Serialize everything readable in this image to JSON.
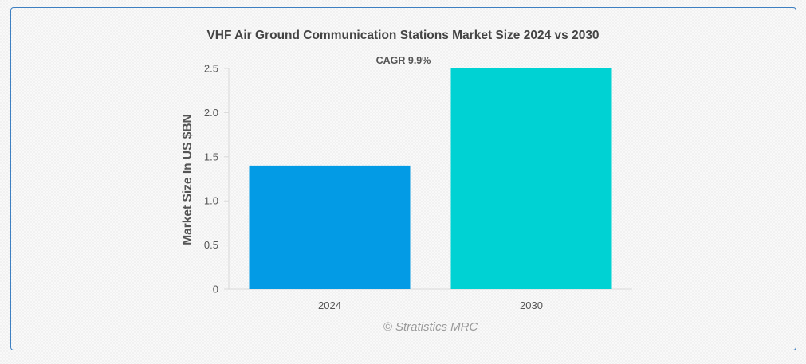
{
  "colors": {
    "bar_2024": "#039be5",
    "bar_2030": "#00d2d3",
    "card_border": "#3d7fc1"
  },
  "watermark": "© Stratistics MRC",
  "chart_data": {
    "type": "bar",
    "title": "VHF Air Ground Communication Stations Market Size 2024 vs 2030",
    "xlabel": "",
    "ylabel": "Market Size In US $BN",
    "categories": [
      "2024",
      "2030"
    ],
    "values": [
      1.4,
      2.5
    ],
    "ylim": [
      0,
      2.5
    ],
    "yticks": [
      {
        "value": 0,
        "label": "0"
      },
      {
        "value": 0.5,
        "label": "0.5"
      },
      {
        "value": 1,
        "label": "1.0"
      },
      {
        "value": 1.5,
        "label": "1.5"
      },
      {
        "value": 2,
        "label": "2.0"
      },
      {
        "value": 2.5,
        "label": "2.5"
      }
    ],
    "grid": false,
    "annotation": "CAGR 9.9%"
  }
}
